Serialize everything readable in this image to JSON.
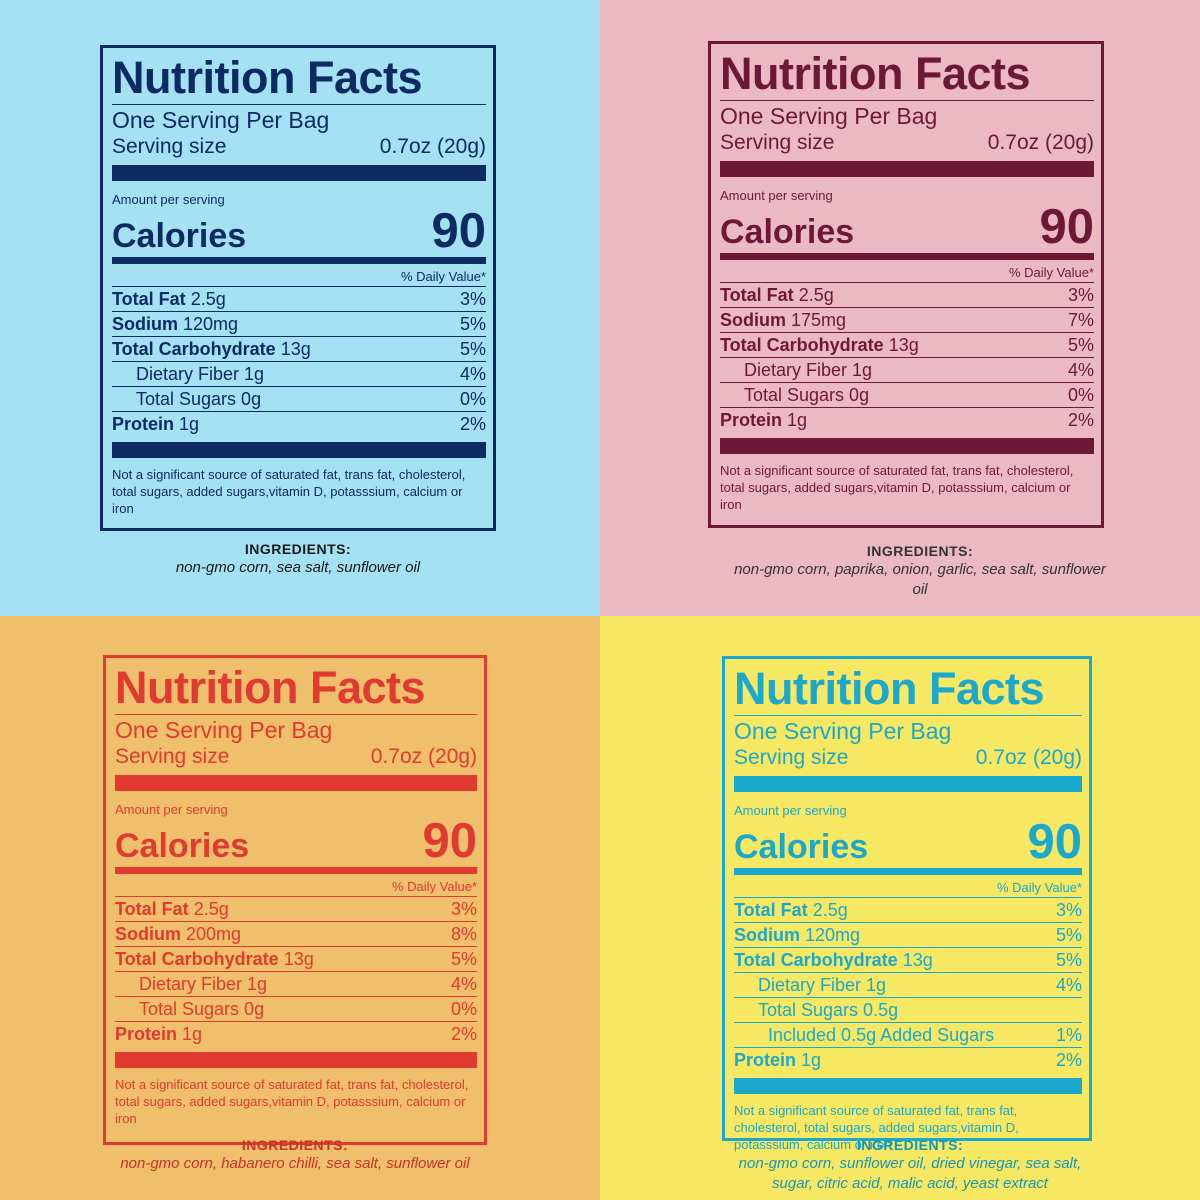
{
  "labels": [
    {
      "colors": {
        "bg": "#a4e1f3",
        "fg": "#0d2a63"
      },
      "title": "Nutrition Facts",
      "servings": "One Serving Per Bag",
      "serving_label": "Serving size",
      "serving_size": "0.7oz (20g)",
      "amount_per": "Amount per serving",
      "calories_label": "Calories",
      "calories": "90",
      "dv_header": "% Daily Value*",
      "rows": [
        {
          "name": "Total Fat",
          "amount": "2.5g",
          "dv": "3%"
        },
        {
          "name": "Sodium",
          "amount": "120mg",
          "dv": "5%"
        },
        {
          "name": "Total Carbohydrate",
          "amount": "13g",
          "dv": "5%"
        },
        {
          "name": "Dietary Fiber 1g",
          "dv": "4%"
        },
        {
          "name": "Total Sugars 0g",
          "dv": "0%"
        },
        {
          "name": "Protein",
          "amount": "1g",
          "dv": "2%"
        }
      ],
      "footnote": "Not a significant source of saturated fat, trans fat, cholesterol, total sugars, added sugars,vitamin D, potasssium, calcium or iron",
      "ingredients_label": "INGREDIENTS:",
      "ingredients": "non-gmo corn, sea salt, sunflower oil"
    },
    {
      "colors": {
        "bg": "#ebb9c4",
        "fg": "#6e1838"
      },
      "title": "Nutrition Facts",
      "servings": "One Serving Per Bag",
      "serving_label": "Serving size",
      "serving_size": "0.7oz (20g)",
      "amount_per": "Amount per serving",
      "calories_label": "Calories",
      "calories": "90",
      "dv_header": "% Daily Value*",
      "rows": [
        {
          "name": "Total Fat",
          "amount": "2.5g",
          "dv": "3%"
        },
        {
          "name": "Sodium",
          "amount": "175mg",
          "dv": "7%"
        },
        {
          "name": "Total Carbohydrate",
          "amount": "13g",
          "dv": "5%"
        },
        {
          "name": "Dietary Fiber 1g",
          "dv": "4%"
        },
        {
          "name": "Total Sugars 0g",
          "dv": "0%"
        },
        {
          "name": "Protein",
          "amount": "1g",
          "dv": "2%"
        }
      ],
      "footnote": "Not a significant source of saturated fat, trans fat, cholesterol, total sugars, added sugars,vitamin D, potasssium, calcium or iron",
      "ingredients_label": "INGREDIENTS:",
      "ingredients": "non-gmo corn, paprika, onion, garlic, sea salt, sunflower oil"
    },
    {
      "colors": {
        "bg": "#efbf6c",
        "fg": "#e03a31"
      },
      "title": "Nutrition Facts",
      "servings": "One Serving Per Bag",
      "serving_label": "Serving size",
      "serving_size": "0.7oz (20g)",
      "amount_per": "Amount per serving",
      "calories_label": "Calories",
      "calories": "90",
      "dv_header": "% Daily Value*",
      "rows": [
        {
          "name": "Total Fat",
          "amount": "2.5g",
          "dv": "3%"
        },
        {
          "name": "Sodium",
          "amount": "200mg",
          "dv": "8%"
        },
        {
          "name": "Total Carbohydrate",
          "amount": "13g",
          "dv": "5%"
        },
        {
          "name": "Dietary Fiber 1g",
          "dv": "4%"
        },
        {
          "name": "Total Sugars 0g",
          "dv": "0%"
        },
        {
          "name": "Protein",
          "amount": "1g",
          "dv": "2%"
        }
      ],
      "footnote": "Not a significant source of saturated fat, trans fat, cholesterol, total sugars, added sugars,vitamin D, potasssium, calcium or iron",
      "ingredients_label": "INGREDIENTS:",
      "ingredients": "non-gmo corn, habanero chilli, sea salt, sunflower oil"
    },
    {
      "colors": {
        "bg": "#f6e862",
        "fg": "#1aa8cc"
      },
      "title": "Nutrition Facts",
      "servings": "One Serving Per Bag",
      "serving_label": "Serving size",
      "serving_size": "0.7oz (20g)",
      "amount_per": "Amount per serving",
      "calories_label": "Calories",
      "calories": "90",
      "dv_header": "% Daily Value*",
      "rows": [
        {
          "name": "Total Fat",
          "amount": "2.5g",
          "dv": "3%"
        },
        {
          "name": "Sodium",
          "amount": "120mg",
          "dv": "5%"
        },
        {
          "name": "Total Carbohydrate",
          "amount": "13g",
          "dv": "5%"
        },
        {
          "name": "Dietary Fiber 1g",
          "dv": "4%"
        },
        {
          "name": "Total Sugars 0.5g",
          "dv": ""
        },
        {
          "name": "Included 0.5g Added Sugars",
          "dv": "1%"
        },
        {
          "name": "Protein",
          "amount": "1g",
          "dv": "2%"
        }
      ],
      "footnote": "Not a significant source of saturated fat, trans fat, cholesterol, total sugars, added sugars,vitamin D, potasssium, calcium or iron",
      "ingredients_label": "INGREDIENTS:",
      "ingredients": "non-gmo corn, sunflower oil, dried vinegar, sea salt, sugar, citric acid, malic acid, yeast extract"
    }
  ]
}
